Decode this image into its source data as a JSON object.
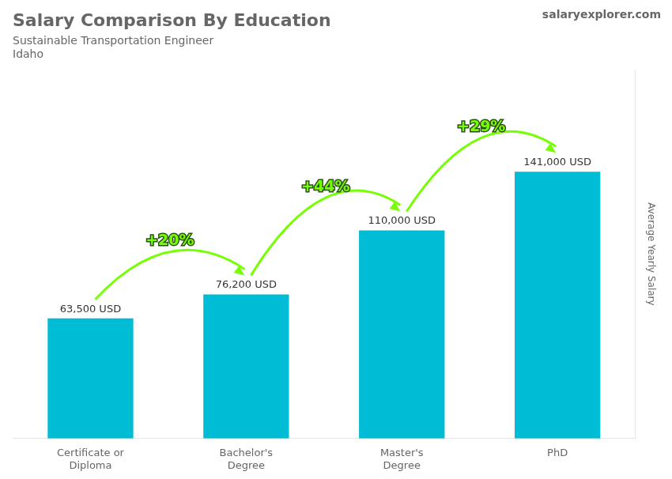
{
  "chart_data": {
    "type": "bar",
    "title": "Salary Comparison By Education",
    "subtitle": [
      "Sustainable Transportation Engineer",
      "Idaho"
    ],
    "ylabel": "Average Yearly Salary",
    "categories": [
      "Certificate or\nDiploma",
      "Bachelor's\nDegree",
      "Master's\nDegree",
      "PhD"
    ],
    "values": [
      63500,
      76200,
      110000,
      141000
    ],
    "value_labels": [
      "63,500 USD",
      "76,200 USD",
      "110,000 USD",
      "141,000 USD"
    ],
    "data_labels": true,
    "color": "#00bcd4",
    "ylim": [
      0,
      195000
    ],
    "grid": false,
    "tick_labels": "x",
    "annotations": [
      {
        "text": "+20%",
        "color": "#76ff03",
        "from": "Certificate or\nDiploma",
        "to": "Bachelor's\nDegree"
      },
      {
        "text": "+44%",
        "color": "#76ff03",
        "from": "Bachelor's\nDegree",
        "to": "Master's\nDegree"
      },
      {
        "text": "+29%",
        "color": "#76ff03",
        "from": "Master's\nDegree",
        "to": "PhD"
      },
      {
        "text": "salaryexplorer.com"
      }
    ]
  }
}
